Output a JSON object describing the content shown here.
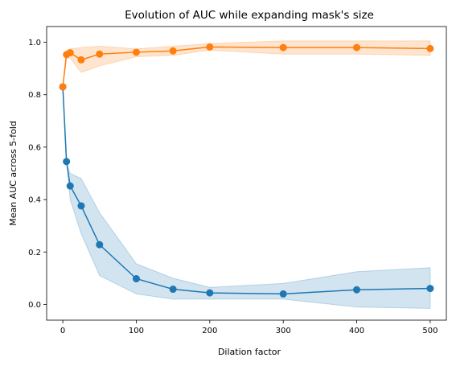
{
  "chart_data": {
    "type": "line",
    "title": "Evolution of AUC while expanding mask's size",
    "xlabel": "Dilation factor",
    "ylabel": "Mean AUC across 5-fold",
    "xlim": [
      -22,
      522
    ],
    "ylim": [
      -0.06,
      1.06
    ],
    "xticks": [
      0,
      100,
      200,
      300,
      400,
      500
    ],
    "xtick_labels": [
      "0",
      "100",
      "200",
      "300",
      "400",
      "500"
    ],
    "yticks": [
      0.0,
      0.2,
      0.4,
      0.6,
      0.8,
      1.0
    ],
    "ytick_labels": [
      "0.0",
      "0.2",
      "0.4",
      "0.6",
      "0.8",
      "1.0"
    ],
    "grid": false,
    "x": [
      0,
      5,
      10,
      25,
      50,
      100,
      150,
      200,
      300,
      400,
      500
    ],
    "series": [
      {
        "color": "#1f77b4",
        "values": [
          0.83,
          0.545,
          0.452,
          0.376,
          0.228,
          0.098,
          0.058,
          0.044,
          0.04,
          0.056,
          0.061
        ],
        "band_lower": [
          0.83,
          0.56,
          0.4,
          0.27,
          0.11,
          0.04,
          0.02,
          0.02,
          0.02,
          -0.01,
          -0.015
        ],
        "band_upper": [
          0.83,
          0.54,
          0.5,
          0.48,
          0.35,
          0.155,
          0.1,
          0.065,
          0.08,
          0.125,
          0.14
        ]
      },
      {
        "color": "#ff7f0e",
        "values": [
          0.83,
          0.953,
          0.96,
          0.933,
          0.955,
          0.962,
          0.967,
          0.982,
          0.98,
          0.98,
          0.976
        ],
        "band_lower": [
          0.83,
          0.94,
          0.94,
          0.885,
          0.91,
          0.945,
          0.95,
          0.97,
          0.955,
          0.955,
          0.95
        ],
        "band_upper": [
          0.83,
          0.97,
          0.975,
          0.98,
          0.985,
          0.975,
          0.985,
          0.995,
          1.005,
          1.005,
          1.005
        ]
      }
    ]
  }
}
